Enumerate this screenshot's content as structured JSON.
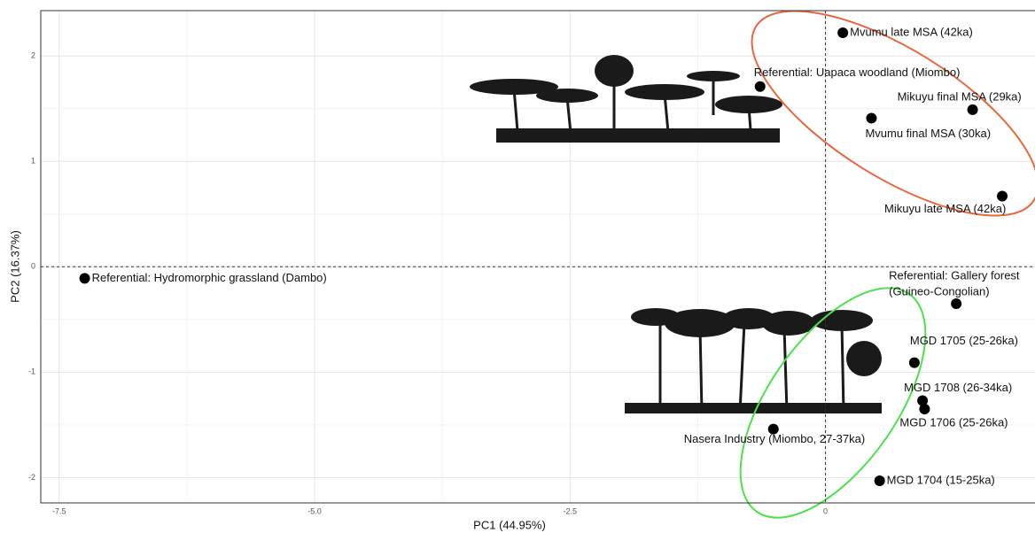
{
  "chart_data": {
    "type": "scatter",
    "x_label": "PC1 (44.95%)",
    "y_label": "PC2 (16.37%)",
    "xlim": [
      -7.68,
      2.12
    ],
    "ylim": [
      -2.24,
      2.43
    ],
    "xticks": [
      -7.5,
      {
        "value": -5,
        "label": "-5.0"
      },
      -2.5,
      0
    ],
    "yticks": [
      -2,
      -1,
      0,
      1,
      2
    ],
    "grid": true,
    "color": "#000000",
    "points": [
      {
        "label": [
          "Mvumu late MSA (42ka)"
        ],
        "x": 0.17,
        "y": 2.22
      },
      {
        "label": [
          "Referential: Uapaca woodland (Miombo)"
        ],
        "x": -0.64,
        "y": 1.71
      },
      {
        "label": [
          "Mikuyu final MSA (29ka)"
        ],
        "x": 1.44,
        "y": 1.49
      },
      {
        "label": [
          "Mvumu final MSA (30ka)"
        ],
        "x": 0.45,
        "y": 1.41
      },
      {
        "label": [
          "Mikuyu late MSA (42ka)"
        ],
        "x": 1.73,
        "y": 0.67
      },
      {
        "label": [
          "Referential: Hydromorphic grassland (Dambo)"
        ],
        "x": -7.25,
        "y": -0.11
      },
      {
        "label": [
          "Referential: Gallery forest",
          "(Guineo-Congolian)"
        ],
        "x": 1.28,
        "y": -0.35
      },
      {
        "label": [
          "MGD 1705 (25-26ka)"
        ],
        "x": 0.87,
        "y": -0.91
      },
      {
        "label": [
          "MGD 1708 (26-34ka)"
        ],
        "x": 0.95,
        "y": -1.27
      },
      {
        "label": [
          "MGD 1706 (25-26ka)"
        ],
        "x": 0.97,
        "y": -1.35
      },
      {
        "label": [
          "Nasera Industry (Miombo, 27-37ka)"
        ],
        "x": -0.51,
        "y": -1.54
      },
      {
        "label": [
          "MGD 1704 (15-25ka)"
        ],
        "x": 0.53,
        "y": -2.03
      }
    ]
  }
}
